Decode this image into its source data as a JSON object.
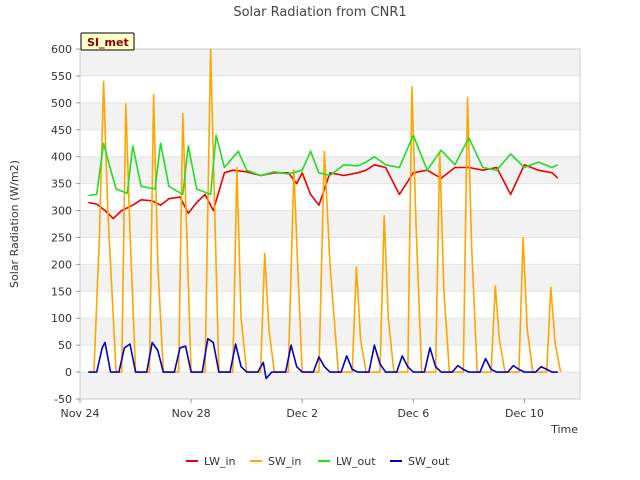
{
  "chart_data": {
    "type": "line",
    "title": "Solar Radiation from CNR1",
    "xlabel": "Time",
    "ylabel": "Solar Radiation (W/m2)",
    "ylim": [
      -50,
      600
    ],
    "yticks": [
      -50,
      0,
      50,
      100,
      150,
      200,
      250,
      300,
      350,
      400,
      450,
      500,
      550,
      600
    ],
    "xlim": [
      0,
      18
    ],
    "xticks": [
      {
        "value": 0,
        "label": "Nov 24"
      },
      {
        "value": 4,
        "label": "Nov 28"
      },
      {
        "value": 8,
        "label": "Dec 2"
      },
      {
        "value": 12,
        "label": "Dec 6"
      },
      {
        "value": 16,
        "label": "Dec 10"
      }
    ],
    "badge": "SI_met",
    "grid": "horizontal bands",
    "legend_position": "bottom",
    "series": [
      {
        "name": "LW_in",
        "color": "#ee0000",
        "x": [
          0.3,
          0.6,
          0.9,
          1.2,
          1.5,
          1.9,
          2.2,
          2.6,
          2.9,
          3.2,
          3.6,
          3.9,
          4.2,
          4.5,
          4.8,
          5.2,
          5.5,
          6.0,
          6.5,
          7.0,
          7.5,
          7.8,
          8.0,
          8.3,
          8.6,
          9.0,
          9.5,
          10.0,
          10.3,
          10.6,
          11.0,
          11.5,
          12.0,
          12.5,
          13.0,
          13.5,
          14.0,
          14.5,
          15.0,
          15.5,
          16.0,
          16.5,
          17.0,
          17.2
        ],
        "y": [
          315,
          312,
          300,
          285,
          300,
          310,
          320,
          318,
          310,
          322,
          325,
          295,
          315,
          330,
          300,
          370,
          375,
          372,
          365,
          370,
          370,
          350,
          370,
          330,
          310,
          370,
          365,
          370,
          375,
          385,
          380,
          330,
          370,
          375,
          360,
          380,
          380,
          375,
          380,
          330,
          385,
          375,
          370,
          360
        ]
      },
      {
        "name": "SW_in",
        "color": "#ffa500",
        "x": [
          0.3,
          0.5,
          0.7,
          0.85,
          1.0,
          1.3,
          1.5,
          1.65,
          1.8,
          2.0,
          2.3,
          2.5,
          2.65,
          2.8,
          3.0,
          3.3,
          3.55,
          3.7,
          3.85,
          4.0,
          4.3,
          4.5,
          4.7,
          4.85,
          5.0,
          5.3,
          5.5,
          5.65,
          5.8,
          6.0,
          6.3,
          6.5,
          6.65,
          6.8,
          7.0,
          7.3,
          7.5,
          7.7,
          7.85,
          8.0,
          8.3,
          8.6,
          8.8,
          9.0,
          9.3,
          9.6,
          9.8,
          9.95,
          10.1,
          10.3,
          10.6,
          10.8,
          10.95,
          11.1,
          11.3,
          11.6,
          11.8,
          11.95,
          12.1,
          12.3,
          12.6,
          12.8,
          12.95,
          13.1,
          13.3,
          13.6,
          13.8,
          13.95,
          14.1,
          14.3,
          14.6,
          14.8,
          14.95,
          15.1,
          15.3,
          15.6,
          15.8,
          15.95,
          16.1,
          16.3,
          16.6,
          16.8,
          16.95,
          17.1,
          17.3
        ],
        "y": [
          0,
          0,
          250,
          540,
          300,
          0,
          0,
          498,
          260,
          0,
          0,
          0,
          515,
          200,
          0,
          0,
          0,
          480,
          250,
          0,
          0,
          0,
          600,
          300,
          0,
          0,
          0,
          380,
          100,
          0,
          0,
          0,
          220,
          80,
          0,
          0,
          0,
          375,
          180,
          0,
          0,
          0,
          410,
          200,
          0,
          0,
          0,
          195,
          60,
          0,
          0,
          0,
          290,
          100,
          0,
          0,
          0,
          530,
          270,
          0,
          0,
          0,
          410,
          150,
          0,
          0,
          0,
          510,
          230,
          0,
          0,
          0,
          160,
          60,
          0,
          0,
          0,
          250,
          80,
          0,
          0,
          0,
          158,
          55,
          0
        ]
      },
      {
        "name": "LW_out",
        "color": "#22dd22",
        "x": [
          0.3,
          0.6,
          0.85,
          1.0,
          1.3,
          1.7,
          1.9,
          2.2,
          2.7,
          2.9,
          3.2,
          3.7,
          3.9,
          4.2,
          4.7,
          4.9,
          5.2,
          5.7,
          6.0,
          6.5,
          7.0,
          7.5,
          7.8,
          8.0,
          8.3,
          8.6,
          9.0,
          9.5,
          10.0,
          10.3,
          10.6,
          11.0,
          11.5,
          12.0,
          12.5,
          13.0,
          13.5,
          14.0,
          14.5,
          15.0,
          15.5,
          16.0,
          16.5,
          17.0,
          17.2
        ],
        "y": [
          328,
          330,
          425,
          395,
          340,
          332,
          420,
          345,
          340,
          425,
          345,
          330,
          420,
          340,
          330,
          440,
          380,
          410,
          375,
          365,
          372,
          368,
          372,
          375,
          410,
          370,
          365,
          385,
          383,
          390,
          400,
          385,
          380,
          440,
          375,
          412,
          385,
          435,
          380,
          375,
          405,
          380,
          390,
          380,
          385
        ]
      },
      {
        "name": "SW_out",
        "color": "#0000cc",
        "x": [
          0.3,
          0.6,
          0.8,
          0.9,
          1.1,
          1.4,
          1.6,
          1.8,
          2.0,
          2.4,
          2.6,
          2.8,
          3.0,
          3.4,
          3.6,
          3.8,
          4.0,
          4.4,
          4.6,
          4.8,
          5.0,
          5.4,
          5.6,
          5.8,
          6.0,
          6.4,
          6.6,
          6.7,
          6.9,
          7.4,
          7.6,
          7.8,
          8.0,
          8.4,
          8.6,
          8.8,
          9.0,
          9.4,
          9.6,
          9.8,
          10.0,
          10.4,
          10.6,
          10.8,
          11.0,
          11.4,
          11.6,
          11.8,
          12.0,
          12.4,
          12.6,
          12.8,
          13.0,
          13.4,
          13.6,
          13.8,
          14.0,
          14.4,
          14.6,
          14.8,
          15.0,
          15.4,
          15.6,
          15.8,
          16.0,
          16.4,
          16.6,
          16.8,
          17.0,
          17.2
        ],
        "y": [
          0,
          0,
          45,
          55,
          0,
          0,
          45,
          52,
          0,
          0,
          55,
          40,
          0,
          0,
          45,
          48,
          0,
          0,
          62,
          55,
          0,
          0,
          52,
          10,
          0,
          0,
          18,
          -12,
          0,
          0,
          50,
          10,
          0,
          0,
          28,
          10,
          0,
          0,
          30,
          5,
          0,
          0,
          50,
          15,
          0,
          0,
          30,
          10,
          0,
          0,
          45,
          10,
          0,
          0,
          12,
          5,
          0,
          0,
          25,
          5,
          0,
          0,
          12,
          5,
          0,
          0,
          10,
          5,
          0,
          0
        ]
      }
    ]
  }
}
